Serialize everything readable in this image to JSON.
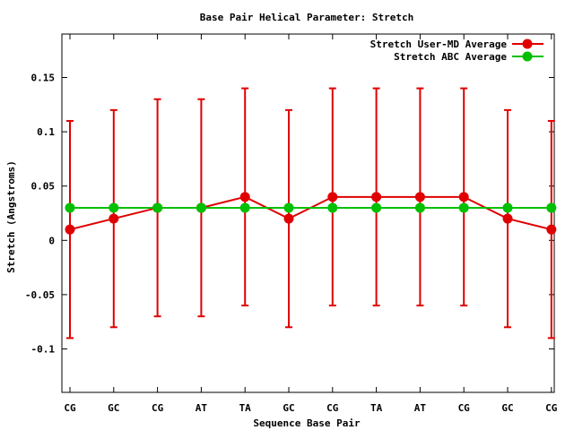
{
  "chart_data": {
    "type": "line",
    "title": "Base Pair Helical Parameter: Stretch",
    "xlabel": "Sequence Base Pair",
    "ylabel": "Stretch (Angstroms)",
    "categories": [
      "CG",
      "GC",
      "CG",
      "AT",
      "TA",
      "GC",
      "CG",
      "TA",
      "AT",
      "CG",
      "GC",
      "CG"
    ],
    "ylim": [
      -0.14,
      0.19
    ],
    "yticks": [
      -0.1,
      -0.05,
      0,
      0.05,
      0.1,
      0.15
    ],
    "ytick_labels": [
      "-0.1",
      "-0.05",
      "0",
      "0.05",
      "0.1",
      "0.15"
    ],
    "legend_position": "top-right",
    "grid": false,
    "series": [
      {
        "name": "Stretch User-MD Average",
        "color": "#e00000",
        "values": [
          0.01,
          0.02,
          0.03,
          0.03,
          0.04,
          0.02,
          0.04,
          0.04,
          0.04,
          0.04,
          0.02,
          0.01
        ],
        "error_low": [
          -0.09,
          -0.08,
          -0.07,
          -0.07,
          -0.06,
          -0.08,
          -0.06,
          -0.06,
          -0.06,
          -0.06,
          -0.08,
          -0.09
        ],
        "error_high": [
          0.11,
          0.12,
          0.13,
          0.13,
          0.14,
          0.12,
          0.14,
          0.14,
          0.14,
          0.14,
          0.12,
          0.11
        ]
      },
      {
        "name": "Stretch ABC Average",
        "color": "#00c000",
        "values": [
          0.03,
          0.03,
          0.03,
          0.03,
          0.03,
          0.03,
          0.03,
          0.03,
          0.03,
          0.03,
          0.03,
          0.03
        ]
      }
    ]
  }
}
